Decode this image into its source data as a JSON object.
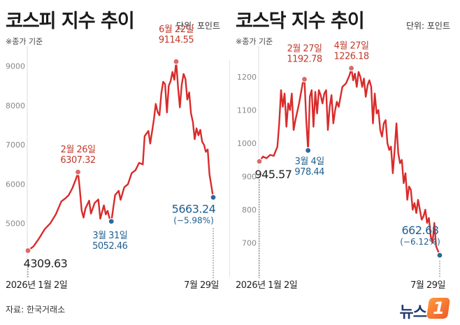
{
  "source": "자료: 한국거래소",
  "logo_text": "뉴스",
  "logo_badge": "1",
  "colors": {
    "line": "#d92b2b",
    "high_dot": "#d86b6b",
    "low_dot": "#2a6a9c",
    "label_red": "#c0392b",
    "label_blue": "#1f5f8f",
    "axis": "#888888"
  },
  "chart_data": [
    {
      "type": "line",
      "title": "코스피 지수 추이",
      "unit": "단위: 포인트",
      "basis": "※종가 기준",
      "yticks": [
        5000,
        6000,
        7000,
        8000,
        9000
      ],
      "ylim": [
        4000,
        9400
      ],
      "xlim": [
        0,
        100
      ],
      "x_start_label": "2026년 1월 2일",
      "x_end_label": "7월 29일",
      "series": [
        {
          "values": [
            [
              0,
              4309.63
            ],
            [
              3,
              4420
            ],
            [
              6,
              4620
            ],
            [
              9,
              4850
            ],
            [
              12,
              5000
            ],
            [
              15,
              5230
            ],
            [
              18,
              5560
            ],
            [
              20,
              5630
            ],
            [
              22,
              5720
            ],
            [
              24,
              5900
            ],
            [
              26,
              6140
            ],
            [
              27,
              6307.32
            ],
            [
              28,
              5860
            ],
            [
              29,
              5330
            ],
            [
              30,
              5150
            ],
            [
              31,
              5380
            ],
            [
              33,
              5580
            ],
            [
              34,
              5250
            ],
            [
              36,
              5520
            ],
            [
              38,
              5610
            ],
            [
              39,
              5120
            ],
            [
              41,
              5460
            ],
            [
              42,
              5230
            ],
            [
              43,
              5320
            ],
            [
              44,
              5140
            ],
            [
              45,
              5052.46
            ],
            [
              47,
              5720
            ],
            [
              49,
              5830
            ],
            [
              50,
              5600
            ],
            [
              52,
              5920
            ],
            [
              54,
              6000
            ],
            [
              56,
              6280
            ],
            [
              58,
              6350
            ],
            [
              60,
              6540
            ],
            [
              62,
              6500
            ],
            [
              63,
              7220
            ],
            [
              65,
              7350
            ],
            [
              66,
              7030
            ],
            [
              68,
              7650
            ],
            [
              69,
              8040
            ],
            [
              70,
              7830
            ],
            [
              71,
              7750
            ],
            [
              72,
              8310
            ],
            [
              73,
              8600
            ],
            [
              74,
              8540
            ],
            [
              75,
              7820
            ],
            [
              76,
              8500
            ],
            [
              77,
              8620
            ],
            [
              78,
              8850
            ],
            [
              79,
              8650
            ],
            [
              80,
              9114.55
            ],
            [
              81,
              8460
            ],
            [
              82,
              7950
            ],
            [
              83,
              8520
            ],
            [
              84,
              8800
            ],
            [
              85,
              8670
            ],
            [
              86,
              8150
            ],
            [
              87,
              8330
            ],
            [
              88,
              7800
            ],
            [
              89,
              7580
            ],
            [
              90,
              7140
            ],
            [
              91,
              7420
            ],
            [
              92,
              7240
            ],
            [
              93,
              7380
            ],
            [
              94,
              7080
            ],
            [
              95,
              7000
            ],
            [
              96,
              6820
            ],
            [
              97,
              6880
            ],
            [
              98,
              6240
            ],
            [
              100,
              5663.24
            ]
          ]
        }
      ],
      "annotations": [
        {
          "date": "6월 22일",
          "value": "9114.55",
          "x": 80,
          "y": 9114.55,
          "kind": "high"
        },
        {
          "date": "2월 26일",
          "value": "6307.32",
          "x": 27,
          "y": 6307.32,
          "kind": "high"
        },
        {
          "date": "3월 31일",
          "value": "5052.46",
          "x": 45,
          "y": 5052.46,
          "kind": "low"
        },
        {
          "date": "",
          "value": "4309.63",
          "x": 0,
          "y": 4309.63,
          "kind": "start"
        },
        {
          "date": "",
          "value": "5663.24",
          "sub": "(−5.98%)",
          "x": 100,
          "y": 5663.24,
          "kind": "end"
        }
      ]
    },
    {
      "type": "line",
      "title": "코스닥 지수 추이",
      "unit": "단위: 포인트",
      "basis": "※종가 기준",
      "yticks": [
        700,
        800,
        900,
        1000,
        1100,
        1200
      ],
      "ylim": [
        640,
        1280
      ],
      "xlim": [
        0,
        100
      ],
      "x_start_label": "2026년 1월 2일",
      "x_end_label": "7월 29일",
      "series": [
        {
          "values": [
            [
              0,
              945.57
            ],
            [
              2,
              960
            ],
            [
              4,
              955
            ],
            [
              6,
              965
            ],
            [
              8,
              962
            ],
            [
              10,
              990
            ],
            [
              11,
              1060
            ],
            [
              12,
              1160
            ],
            [
              13,
              1110
            ],
            [
              14,
              1150
            ],
            [
              15,
              1050
            ],
            [
              16,
              1120
            ],
            [
              17,
              1100
            ],
            [
              18,
              1150
            ],
            [
              19,
              1040
            ],
            [
              20,
              1070
            ],
            [
              22,
              1120
            ],
            [
              24,
              1180
            ],
            [
              25,
              1192.78
            ],
            [
              26,
              1070
            ],
            [
              27,
              978.44
            ],
            [
              28,
              1140
            ],
            [
              29,
              1160
            ],
            [
              30,
              1050
            ],
            [
              31,
              1155
            ],
            [
              32,
              1090
            ],
            [
              33,
              1160
            ],
            [
              34,
              1145
            ],
            [
              35,
              1120
            ],
            [
              36,
              1150
            ],
            [
              37,
              1160
            ],
            [
              38,
              1040
            ],
            [
              39,
              1110
            ],
            [
              40,
              1145
            ],
            [
              41,
              1060
            ],
            [
              42,
              1100
            ],
            [
              43,
              1125
            ],
            [
              44,
              1110
            ],
            [
              46,
              1170
            ],
            [
              48,
              1180
            ],
            [
              50,
              1205
            ],
            [
              51,
              1226.18
            ],
            [
              52,
              1190
            ],
            [
              53,
              1210
            ],
            [
              54,
              1170
            ],
            [
              55,
              1215
            ],
            [
              56,
              1200
            ],
            [
              57,
              1170
            ],
            [
              58,
              1195
            ],
            [
              59,
              1140
            ],
            [
              60,
              1175
            ],
            [
              61,
              1190
            ],
            [
              62,
              1170
            ],
            [
              63,
              1060
            ],
            [
              64,
              1150
            ],
            [
              65,
              1090
            ],
            [
              66,
              1100
            ],
            [
              67,
              1040
            ],
            [
              68,
              1020
            ],
            [
              69,
              1060
            ],
            [
              70,
              1070
            ],
            [
              71,
              1000
            ],
            [
              72,
              980
            ],
            [
              73,
              990
            ],
            [
              74,
              910
            ],
            [
              75,
              980
            ],
            [
              76,
              1060
            ],
            [
              77,
              970
            ],
            [
              78,
              940
            ],
            [
              79,
              950
            ],
            [
              80,
              880
            ],
            [
              81,
              910
            ],
            [
              82,
              830
            ],
            [
              83,
              870
            ],
            [
              84,
              860
            ],
            [
              85,
              800
            ],
            [
              86,
              820
            ],
            [
              87,
              790
            ],
            [
              88,
              830
            ],
            [
              89,
              800
            ],
            [
              90,
              770
            ],
            [
              91,
              780
            ],
            [
              92,
              800
            ],
            [
              93,
              760
            ],
            [
              94,
              775
            ],
            [
              95,
              720
            ],
            [
              96,
              700
            ],
            [
              97,
              760
            ],
            [
              98,
              690
            ],
            [
              100,
              662.68
            ]
          ]
        }
      ],
      "annotations": [
        {
          "date": "4월 27일",
          "value": "1226.18",
          "x": 51,
          "y": 1226.18,
          "kind": "high"
        },
        {
          "date": "2월 27일",
          "value": "1192.78",
          "x": 25,
          "y": 1192.78,
          "kind": "high"
        },
        {
          "date": "3월 4일",
          "value": "978.44",
          "x": 27,
          "y": 978.44,
          "kind": "low"
        },
        {
          "date": "",
          "value": "945.57",
          "x": 0,
          "y": 945.57,
          "kind": "start"
        },
        {
          "date": "",
          "value": "662.68",
          "sub": "(−6.12%)",
          "x": 100,
          "y": 662.68,
          "kind": "end"
        }
      ]
    }
  ]
}
